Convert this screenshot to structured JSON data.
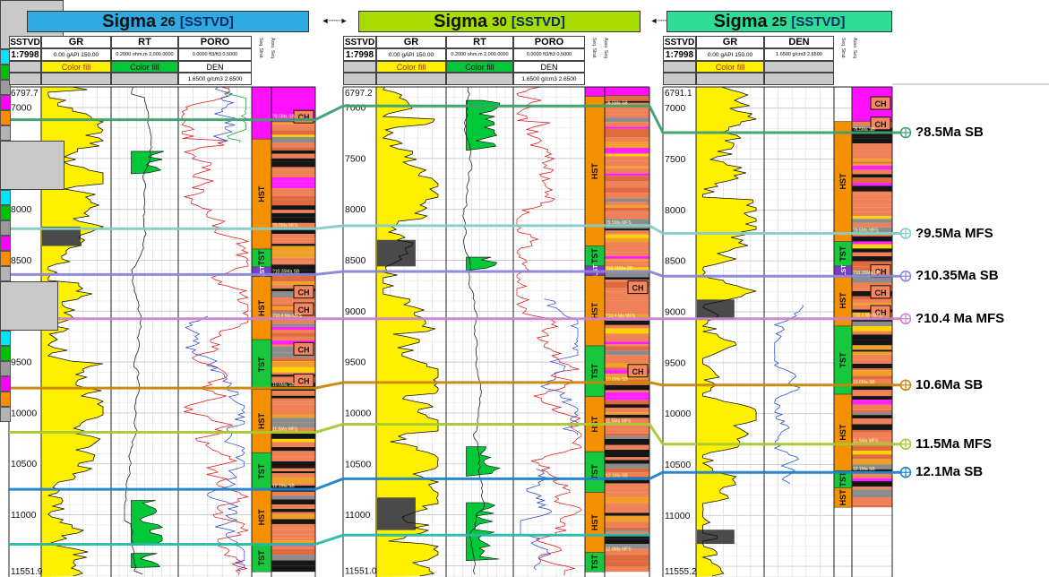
{
  "panel": {
    "arrow_glyph": "◄┄┄┄►"
  },
  "chart_data": {
    "type": "well-log-correlation",
    "depth_unit": "ft SSTVD",
    "scale": "1:7998",
    "wells": [
      {
        "title": {
          "name": "Sigma",
          "number": "26",
          "datum": "[SSTVD]",
          "bar_color": "#2FA9E1"
        },
        "top_depth": 6797.7,
        "top_label": "6797.7",
        "bottom_label": "11551.9",
        "ticks": [
          7000,
          7500,
          8000,
          8500,
          9000,
          9500,
          10000,
          10500,
          11000
        ],
        "header": {
          "depth_title": "SSTVD",
          "depth_scale": "1:7998",
          "tracks": [
            {
              "name": "GR",
              "scale": "0.00 gAPI 150.00",
              "fill_label": "Color fill",
              "fill_color": "#FFF000",
              "fill_text_color": "#A03000"
            },
            {
              "name": "RT",
              "scale": "0.2000 ohm.m 2,000.0000",
              "fill_label": "Color fill",
              "fill_color": "#00C839",
              "fill_text_color": "#111111"
            },
            {
              "name": "PORO",
              "scale": "0.0000 ft3/ft3 0.5000",
              "sub_name": "DEN",
              "sub_scale": "1.6500 g/cm3 2.6500"
            }
          ],
          "chip_columns": [
            {
              "label": "Seq. Strat.",
              "colors": [
                "#00E5FF",
                "#00C000",
                "#9A9A9A"
              ]
            },
            {
              "label": "Asso. Seq.",
              "colors": [
                "#FF00FF",
                "#FF8C00",
                "#B4B4B4"
              ]
            }
          ]
        },
        "zones": [
          {
            "from": 6798,
            "to": 7310,
            "color": "#FF10FF",
            "label": ""
          },
          {
            "from": 7310,
            "to": 8390,
            "color": "#F59000",
            "label": "HST"
          },
          {
            "from": 8390,
            "to": 8565,
            "color": "#18C83C",
            "label": "TST"
          },
          {
            "from": 8565,
            "to": 8660,
            "color": "#7A3CC8",
            "label": "LST"
          },
          {
            "from": 8660,
            "to": 9280,
            "color": "#F59000",
            "label": "HST"
          },
          {
            "from": 9280,
            "to": 9770,
            "color": "#18C83C",
            "label": "TST"
          },
          {
            "from": 9770,
            "to": 10390,
            "color": "#F59000",
            "label": "HST"
          },
          {
            "from": 10390,
            "to": 10760,
            "color": "#18C83C",
            "label": "TST"
          },
          {
            "from": 10760,
            "to": 11290,
            "color": "#F59000",
            "label": "HST"
          },
          {
            "from": 11290,
            "to": 11560,
            "color": "#18C83C",
            "label": "TST"
          }
        ],
        "facies": {
          "from": 6798,
          "to": 11560,
          "magenta_top": [
            6798,
            7140
          ],
          "ch_labels": [
            7090,
            8810,
            8980,
            9370,
            9680
          ]
        },
        "gr_dark": [
          [
            8170,
            8360
          ]
        ],
        "rt_green": [
          [
            7430,
            7650
          ],
          [
            10860,
            11300
          ],
          [
            11380,
            11520
          ]
        ],
        "poro_blue": [
          [
            6798,
            7350
          ],
          [
            9050,
            11560
          ]
        ],
        "poro_green": [
          [
            6798,
            7350
          ]
        ],
        "den_blue": [],
        "tiny_labels": []
      },
      {
        "title": {
          "name": "Sigma",
          "number": "30",
          "datum": "[SSTVD]",
          "bar_color": "#A8DC00"
        },
        "top_depth": 6797.2,
        "top_label": "6797.2",
        "bottom_label": "11551.0",
        "ticks": [
          7000,
          7500,
          8000,
          8500,
          9000,
          9500,
          10000,
          10500,
          11000
        ],
        "header": {
          "depth_title": "SSTVD",
          "depth_scale": "1:7998",
          "tracks": [
            {
              "name": "GR",
              "scale": "0.00 gAPI 150.00",
              "fill_label": "Color fill",
              "fill_color": "#FFF000",
              "fill_text_color": "#A03000"
            },
            {
              "name": "RT",
              "scale": "0.2000 ohm.m 2,000.0000",
              "fill_label": "Color fill",
              "fill_color": "#00C839",
              "fill_text_color": "#111111"
            },
            {
              "name": "PORO",
              "scale": "0.0000 ft3/ft3 0.5000",
              "sub_name": "DEN",
              "sub_scale": "1.6500 g/cm3 2.6500"
            }
          ],
          "chip_columns": [
            {
              "label": "Seq. Strat.",
              "colors": [
                "#00E5FF",
                "#00C000",
                "#9A9A9A"
              ]
            },
            {
              "label": "Asso. Seq.",
              "colors": [
                "#FF00FF",
                "#FF8C00",
                "#B4B4B4"
              ]
            }
          ]
        },
        "zones": [
          {
            "from": 6797,
            "to": 6890,
            "color": "#FF10FF",
            "label": ""
          },
          {
            "from": 6890,
            "to": 8360,
            "color": "#F59000",
            "label": "HST"
          },
          {
            "from": 8360,
            "to": 8555,
            "color": "#18C83C",
            "label": "TST"
          },
          {
            "from": 8555,
            "to": 8650,
            "color": "#7A3CC8",
            "label": "LST"
          },
          {
            "from": 8650,
            "to": 9340,
            "color": "#F59000",
            "label": "HST"
          },
          {
            "from": 9340,
            "to": 9840,
            "color": "#18C83C",
            "label": "TST"
          },
          {
            "from": 9840,
            "to": 10380,
            "color": "#F59000",
            "label": "HST"
          },
          {
            "from": 10380,
            "to": 10780,
            "color": "#18C83C",
            "label": "TST"
          },
          {
            "from": 10780,
            "to": 11370,
            "color": "#F59000",
            "label": "HST"
          },
          {
            "from": 11370,
            "to": 11560,
            "color": "#18C83C",
            "label": "TST"
          }
        ],
        "facies": {
          "from": 6797,
          "to": 11560,
          "magenta_top": [
            6797,
            6880
          ],
          "ch_labels": [
            8765,
            9585
          ]
        },
        "gr_dark": [
          [
            8300,
            8560
          ],
          [
            10830,
            11150
          ]
        ],
        "rt_green": [
          [
            6930,
            7420
          ],
          [
            8470,
            8600
          ],
          [
            10330,
            10620
          ],
          [
            10880,
            11450
          ]
        ],
        "poro_blue": [
          [
            8880,
            10230
          ],
          [
            10550,
            11560
          ]
        ],
        "poro_green": [],
        "den_blue": [],
        "tiny_labels": [
          {
            "d": 11370,
            "text": "12.8Ma MFS"
          }
        ]
      },
      {
        "title": {
          "name": "Sigma",
          "number": "25",
          "datum": "[SSTVD]",
          "bar_color": "#2EDC96"
        },
        "top_depth": 6791.1,
        "top_label": "6791.1",
        "bottom_label": "11555.2",
        "ticks": [
          7000,
          7500,
          8000,
          8500,
          9000,
          9500,
          10000,
          10500,
          11000
        ],
        "header": {
          "depth_title": "SSTVD",
          "depth_scale": "1:7998",
          "tracks": [
            {
              "name": "GR",
              "scale": "0.00 gAPI 150.00",
              "fill_label": "Color fill",
              "fill_color": "#FFF000",
              "fill_text_color": "#A03000"
            },
            {
              "name": "DEN",
              "scale": "1.6500 g/cm3 2.6500"
            }
          ],
          "chip_columns": [
            {
              "label": "Seq. Strat.",
              "colors": [
                "#00E5FF",
                "#00C000",
                "#9A9A9A"
              ]
            },
            {
              "label": "Asso. Seq.",
              "colors": [
                "#FF00FF",
                "#FF8C00",
                "#B4B4B4"
              ]
            }
          ]
        },
        "zones": [
          {
            "from": 7130,
            "to": 8310,
            "color": "#F59000",
            "label": "HST"
          },
          {
            "from": 8310,
            "to": 8550,
            "color": "#18C83C",
            "label": "TST"
          },
          {
            "from": 8550,
            "to": 8640,
            "color": "#7A3CC8",
            "label": "LST"
          },
          {
            "from": 8640,
            "to": 9140,
            "color": "#F59000",
            "label": "HST"
          },
          {
            "from": 9140,
            "to": 9810,
            "color": "#18C83C",
            "label": "TST"
          },
          {
            "from": 9810,
            "to": 10560,
            "color": "#F59000",
            "label": "HST"
          },
          {
            "from": 10560,
            "to": 10730,
            "color": "#18C83C",
            "label": "TST"
          },
          {
            "from": 10730,
            "to": 10920,
            "color": "#F59000",
            "label": "HST"
          }
        ],
        "facies": {
          "from": 6791,
          "to": 10920,
          "magenta_top": [
            6791,
            7130
          ],
          "ch_labels": [
            6950,
            7150,
            8600,
            8805,
            9000
          ]
        },
        "gr_dark": [
          [
            8880,
            9080
          ],
          [
            11140,
            11280
          ]
        ],
        "rt_green": [],
        "poro_blue": [],
        "poro_green": [],
        "den_blue": [
          [
            8930,
            10690
          ]
        ],
        "tiny_labels": []
      }
    ],
    "markers": [
      {
        "label": "?8.5Ma SB",
        "color": "#3DA06E",
        "depths": [
          7120,
          6985,
          7240
        ]
      },
      {
        "label": "?9.5Ma MFS",
        "color": "#86CCC6",
        "depths": [
          8190,
          8160,
          8230
        ]
      },
      {
        "label": "?10.35Ma SB",
        "color": "#8A85D8",
        "depths": [
          8640,
          8610,
          8650
        ]
      },
      {
        "label": "?10.4 Ma MFS",
        "color": "#C883CE",
        "depths": [
          9075,
          9075,
          9068
        ]
      },
      {
        "label": "10.6Ma SB",
        "color": "#C8860B",
        "depths": [
          9755,
          9700,
          9720
        ]
      },
      {
        "label": "11.5Ma MFS",
        "color": "#A6C832",
        "depths": [
          10190,
          10110,
          10300
        ]
      },
      {
        "label": "12.1Ma SB",
        "color": "#1E82C8",
        "depths": [
          10750,
          10646,
          10577
        ]
      },
      {
        "label": "",
        "color": "#28B9A5",
        "depths": [
          11290,
          11200,
          null
        ]
      }
    ]
  }
}
